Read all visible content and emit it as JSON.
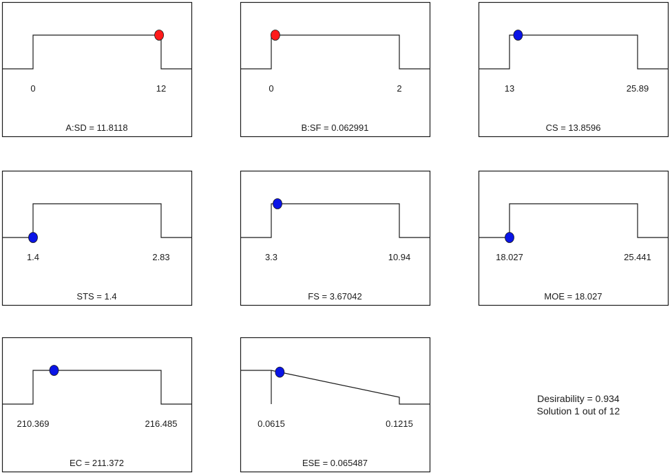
{
  "chart_data": [
    {
      "type": "desirability-ramp",
      "name": "A:SD",
      "caption": "A:SD = 11.8118",
      "low_label": "0",
      "high_label": "12",
      "low": 0,
      "high": 12,
      "value": 11.8118,
      "goal": "in range",
      "marker_color": "#ff1a1a"
    },
    {
      "type": "desirability-ramp",
      "name": "B:SF",
      "caption": "B:SF = 0.062991",
      "low_label": "0",
      "high_label": "2",
      "low": 0,
      "high": 2,
      "value": 0.062991,
      "goal": "in range",
      "marker_color": "#ff1a1a"
    },
    {
      "type": "desirability-ramp",
      "name": "CS",
      "caption": "CS = 13.8596",
      "low_label": "13",
      "high_label": "25.89",
      "low": 13,
      "high": 25.89,
      "value": 13.8596,
      "goal": "in range",
      "marker_color": "#0a14e6"
    },
    {
      "type": "desirability-ramp",
      "name": "STS",
      "caption": "STS = 1.4",
      "low_label": "1.4",
      "high_label": "2.83",
      "low": 1.4,
      "high": 2.83,
      "value": 1.4,
      "goal": "in range",
      "marker_color": "#0a14e6"
    },
    {
      "type": "desirability-ramp",
      "name": "FS",
      "caption": "FS = 3.67042",
      "low_label": "3.3",
      "high_label": "10.94",
      "low": 3.3,
      "high": 10.94,
      "value": 3.67042,
      "goal": "in range",
      "marker_color": "#0a14e6"
    },
    {
      "type": "desirability-ramp",
      "name": "MOE",
      "caption": "MOE = 18.027",
      "low_label": "18.027",
      "high_label": "25.441",
      "low": 18.027,
      "high": 25.441,
      "value": 18.027,
      "goal": "in range",
      "marker_color": "#0a14e6"
    },
    {
      "type": "desirability-ramp",
      "name": "EC",
      "caption": "EC = 211.372",
      "low_label": "210.369",
      "high_label": "216.485",
      "low": 210.369,
      "high": 216.485,
      "value": 211.372,
      "goal": "in range",
      "marker_color": "#0a14e6"
    },
    {
      "type": "desirability-ramp",
      "name": "ESE",
      "caption": "ESE = 0.065487",
      "low_label": "0.0615",
      "high_label": "0.1215",
      "low": 0.0615,
      "high": 0.1215,
      "value": 0.065487,
      "goal": "minimize",
      "marker_color": "#0a14e6"
    }
  ],
  "summary": {
    "desirability": "Desirability = 0.934",
    "solution": "Solution 1 out of 12"
  }
}
